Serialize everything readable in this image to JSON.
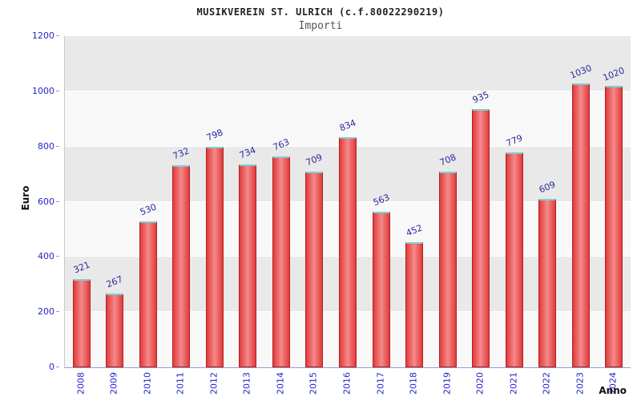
{
  "chart_data": {
    "type": "bar",
    "title": "MUSIKVEREIN ST. ULRICH (c.f.80022290219)",
    "subtitle": "Importi",
    "ylabel": "Euro",
    "xlabel": "Anno",
    "categories": [
      "2008",
      "2009",
      "2010",
      "2011",
      "2012",
      "2013",
      "2014",
      "2015",
      "2016",
      "2017",
      "2018",
      "2019",
      "2020",
      "2021",
      "2022",
      "2023",
      "2024"
    ],
    "values": [
      321,
      267,
      530,
      732,
      798,
      734,
      763,
      709,
      834,
      563,
      452,
      708,
      935,
      779,
      609,
      1030,
      1020
    ],
    "ylim": [
      0,
      1200
    ],
    "yticks": [
      0,
      200,
      400,
      600,
      800,
      1000,
      1200
    ],
    "grid": "on",
    "legend": "none",
    "colors": {
      "bar_fill": "#e23b3b",
      "bar_fill_light": "#f republic",
      "bar_highlight": "#f58a8a",
      "bar_border": "#b22222",
      "bar_top_edge": "#7ad1d1",
      "tick_label": "#2626c9",
      "value_label": "#2a2a9e",
      "band_dark": "#e9e9e9",
      "band_light": "#f8f8f8",
      "gridline": "#ffffff"
    }
  }
}
